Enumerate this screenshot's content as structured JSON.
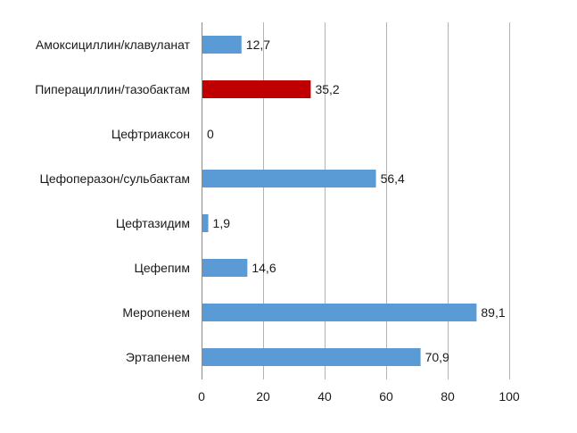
{
  "chart_data": {
    "type": "bar",
    "orientation": "horizontal",
    "categories": [
      "Амоксициллин/клавуланат",
      "Пиперациллин/тазобактам",
      "Цефтриаксон",
      "Цефоперазон/сульбактам",
      "Цефтазидим",
      "Цефепим",
      "Меропенем",
      "Эртапенем"
    ],
    "values": [
      12.7,
      35.2,
      0,
      56.4,
      1.9,
      14.6,
      89.1,
      70.9
    ],
    "value_labels": [
      "12,7",
      "35,2",
      "0",
      "56,4",
      "1,9",
      "14,6",
      "89,1",
      "70,9"
    ],
    "highlight_index": 1,
    "title": "",
    "xlabel": "",
    "ylabel": "",
    "xlim": [
      0,
      100
    ],
    "x_ticks": [
      0,
      20,
      40,
      60,
      80,
      100
    ],
    "grid": "vertical",
    "legend": "none",
    "colors": {
      "bar": "#5b9bd5",
      "highlight": "#c00000"
    }
  }
}
